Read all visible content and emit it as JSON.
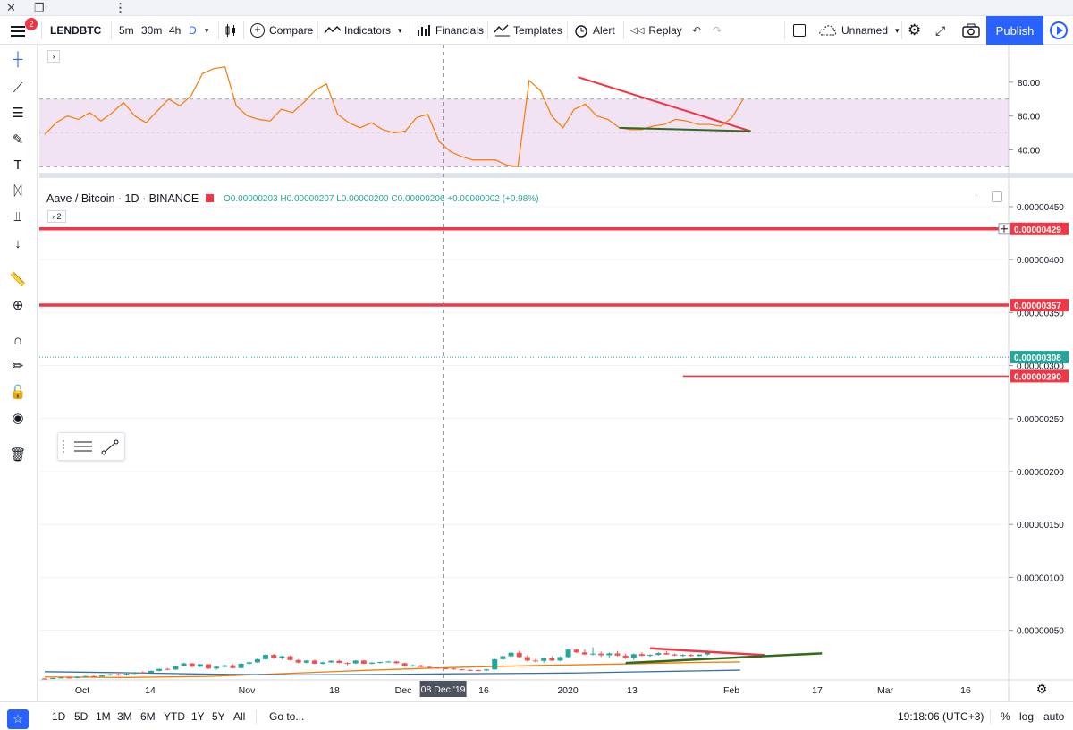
{
  "window": {
    "title_icons": [
      "close-icon",
      "restore-icon",
      "more-icon"
    ]
  },
  "toolbar": {
    "badge": "2",
    "symbol": "LENDBTC",
    "intervals": [
      "5m",
      "30m",
      "4h",
      "D"
    ],
    "compare": "Compare",
    "indicators": "Indicators",
    "financials": "Financials",
    "templates": "Templates",
    "alert": "Alert",
    "replay": "Replay",
    "layout_name": "Unnamed",
    "publish": "Publish"
  },
  "legend": {
    "title": "Aave / Bitcoin · 1D · BINANCE",
    "ohlc": "O0.00000203 H0.00000207 L0.00000200 C0.00000206 +0.00000002 (+0.98%)",
    "collapsed_count": "2"
  },
  "crosshair": {
    "date_label": "08 Dec '19"
  },
  "bottombar": {
    "ranges": [
      "1D",
      "5D",
      "1M",
      "3M",
      "6M",
      "YTD",
      "1Y",
      "5Y",
      "All"
    ],
    "goto": "Go to...",
    "clock": "19:18:06 (UTC+3)",
    "percent": "%",
    "log": "log",
    "auto": "auto"
  },
  "chart_data": [
    {
      "type": "line",
      "name": "RSI panel",
      "y_ticks": [
        "80.00",
        "60.00",
        "40.00"
      ],
      "ylim": [
        27,
        100
      ],
      "band": [
        30,
        70
      ],
      "colors": {
        "rsi": "#f57c00",
        "band": "#e1bee7"
      },
      "x": [
        0,
        3,
        6,
        9,
        12,
        15,
        18,
        21,
        24,
        27,
        30,
        33,
        36,
        39,
        42,
        45,
        48,
        51,
        54,
        57,
        60,
        63,
        66,
        69,
        72,
        75,
        78,
        81,
        84,
        87,
        90,
        93,
        96,
        99,
        102,
        105,
        108,
        111,
        114,
        117,
        120,
        123,
        126,
        129,
        132,
        135,
        138,
        141,
        144,
        147,
        150,
        153,
        156,
        159,
        162,
        165,
        168,
        171,
        174,
        177,
        180,
        183,
        186
      ],
      "values": [
        49,
        56,
        60,
        58,
        62,
        57,
        62,
        68,
        60,
        56,
        63,
        70,
        66,
        72,
        85,
        88,
        89,
        66,
        60,
        58,
        57,
        64,
        62,
        68,
        75,
        79,
        61,
        56,
        53,
        56,
        52,
        50,
        51,
        59,
        61,
        45,
        39,
        36,
        34,
        34,
        34,
        31,
        30,
        81,
        75,
        60,
        53,
        64,
        67,
        60,
        58,
        53,
        52,
        52,
        54,
        55,
        58,
        57,
        55,
        55,
        54,
        59,
        70
      ],
      "trendlines": [
        {
          "color": "#f23645",
          "from": [
            142,
            83
          ],
          "to": [
            188,
            51
          ]
        },
        {
          "color": "#33691e",
          "from": [
            153,
            53
          ],
          "to": [
            188,
            51
          ]
        }
      ]
    },
    {
      "type": "candlestick",
      "name": "Aave / Bitcoin · 1D · BINANCE",
      "y_ticks": [
        "0.00000450",
        "0.00000400",
        "0.00000350",
        "0.00000300",
        "0.00000250",
        "0.00000200",
        "0.00000150",
        "0.00000100",
        "0.00000050"
      ],
      "ylim": [
        1e-07,
        4.55e-06
      ],
      "x_ticks": [
        "Oct",
        "14",
        "Nov",
        "18",
        "Dec",
        "16",
        "2020",
        "13",
        "Feb",
        "17",
        "Mar",
        "16"
      ],
      "price_labels": [
        "0.00000429",
        "0.00000357",
        "0.00000308",
        "0.00000290"
      ],
      "colors": {
        "up": "#26a69a",
        "down": "#ef5350",
        "ma_short": "#f57c00",
        "ma_long": "#3b6ea5",
        "level": "#f23645",
        "support": "#33691e"
      },
      "ohlc": [
        [
          4.5e-08,
          4.8e-08,
          3.8e-08,
          4.2e-08
        ],
        [
          4.2e-08,
          5.2e-08,
          4e-08,
          5e-08
        ],
        [
          5e-08,
          6.2e-08,
          4.6e-08,
          5.5e-08
        ],
        [
          5.5e-08,
          6e-08,
          4.4e-08,
          4.9e-08
        ],
        [
          4.9e-08,
          6.6e-08,
          4.7e-08,
          6e-08
        ],
        [
          6e-08,
          7.2e-08,
          5.5e-08,
          6.8e-08
        ],
        [
          6.8e-08,
          7.8e-08,
          6e-08,
          6.4e-08
        ],
        [
          6.4e-08,
          8.2e-08,
          6e-08,
          7.7e-08
        ],
        [
          7.7e-08,
          9e-08,
          7e-08,
          8.5e-08
        ],
        [
          8.5e-08,
          9.2e-08,
          7.2e-08,
          7.6e-08
        ],
        [
          7.6e-08,
          9.5e-08,
          7.2e-08,
          9e-08
        ],
        [
          9e-08,
          1.08e-07,
          8.6e-08,
          1.04e-07
        ],
        [
          1.04e-07,
          1.15e-07,
          9.6e-08,
          1e-07
        ],
        [
          1e-07,
          1.22e-07,
          9.8e-08,
          1.18e-07
        ],
        [
          1.18e-07,
          1.4e-07,
          1.12e-07,
          1.36e-07
        ],
        [
          1.36e-07,
          1.48e-07,
          1.26e-07,
          1.3e-07
        ],
        [
          1.3e-07,
          1.7e-07,
          1.28e-07,
          1.65e-07
        ],
        [
          1.65e-07,
          1.95e-07,
          1.6e-07,
          1.88e-07
        ],
        [
          1.88e-07,
          1.92e-07,
          1.5e-07,
          1.58e-07
        ],
        [
          1.58e-07,
          1.85e-07,
          1.5e-07,
          1.8e-07
        ],
        [
          1.8e-07,
          1.82e-07,
          1.35e-07,
          1.4e-07
        ],
        [
          1.4e-07,
          1.62e-07,
          1.28e-07,
          1.56e-07
        ],
        [
          1.56e-07,
          1.75e-07,
          1.5e-07,
          1.7e-07
        ],
        [
          1.7e-07,
          1.78e-07,
          1.4e-07,
          1.45e-07
        ],
        [
          1.45e-07,
          1.9e-07,
          1.42e-07,
          1.85e-07
        ],
        [
          1.85e-07,
          2.05e-07,
          1.7e-07,
          1.98e-07
        ],
        [
          1.98e-07,
          2.35e-07,
          1.9e-07,
          2.28e-07
        ],
        [
          2.28e-07,
          2.75e-07,
          2.22e-07,
          2.68e-07
        ],
        [
          2.68e-07,
          2.78e-07,
          2.3e-07,
          2.38e-07
        ],
        [
          2.38e-07,
          2.62e-07,
          2.28e-07,
          2.55e-07
        ],
        [
          2.55e-07,
          2.62e-07,
          2.15e-07,
          2.2e-07
        ],
        [
          2.2e-07,
          2.28e-07,
          1.9e-07,
          1.95e-07
        ],
        [
          1.95e-07,
          2.2e-07,
          1.86e-07,
          2.15e-07
        ],
        [
          2.15e-07,
          2.25e-07,
          1.8e-07,
          1.85e-07
        ],
        [
          1.85e-07,
          2.05e-07,
          1.78e-07,
          1.98e-07
        ],
        [
          1.98e-07,
          2.18e-07,
          1.92e-07,
          2.12e-07
        ],
        [
          2.12e-07,
          2.22e-07,
          1.9e-07,
          1.92e-07
        ],
        [
          1.92e-07,
          2e-07,
          1.7e-07,
          1.88e-07
        ],
        [
          1.88e-07,
          2.18e-07,
          1.82e-07,
          2.15e-07
        ],
        [
          2.15e-07,
          2.2e-07,
          1.8e-07,
          1.85e-07
        ],
        [
          1.85e-07,
          2e-07,
          1.78e-07,
          1.95e-07
        ],
        [
          1.95e-07,
          2.05e-07,
          1.85e-07,
          2.02e-07
        ],
        [
          2.02e-07,
          2.12e-07,
          1.96e-07,
          2.06e-07
        ],
        [
          2.06e-07,
          2.12e-07,
          1.86e-07,
          1.9e-07
        ],
        [
          1.9e-07,
          1.95e-07,
          1.6e-07,
          1.65e-07
        ],
        [
          1.65e-07,
          1.78e-07,
          1.55e-07,
          1.7e-07
        ],
        [
          1.7e-07,
          1.75e-07,
          1.5e-07,
          1.55e-07
        ],
        [
          1.55e-07,
          1.62e-07,
          1.42e-07,
          1.48e-07
        ],
        [
          1.48e-07,
          1.52e-07,
          1.38e-07,
          1.42e-07
        ],
        [
          1.42e-07,
          1.48e-07,
          1.35e-07,
          1.4e-07
        ],
        [
          1.4e-07,
          1.45e-07,
          1.28e-07,
          1.32e-07
        ],
        [
          1.32e-07,
          1.38e-07,
          1.24e-07,
          1.27e-07
        ],
        [
          1.27e-07,
          1.33e-07,
          1.2e-07,
          1.24e-07
        ],
        [
          1.24e-07,
          1.3e-07,
          1.18e-07,
          1.22e-07
        ],
        [
          1.22e-07,
          1.36e-07,
          1.15e-07,
          1.32e-07
        ],
        [
          1.32e-07,
          2.32e-07,
          1.28e-07,
          2.28e-07
        ],
        [
          2.28e-07,
          2.62e-07,
          2.2e-07,
          2.55e-07
        ],
        [
          2.55e-07,
          3.02e-07,
          2.45e-07,
          2.88e-07
        ],
        [
          2.88e-07,
          3.08e-07,
          2.4e-07,
          2.48e-07
        ],
        [
          2.48e-07,
          2.65e-07,
          2.05e-07,
          2.15e-07
        ],
        [
          2.15e-07,
          2.3e-07,
          1.95e-07,
          2.12e-07
        ],
        [
          2.12e-07,
          2.4e-07,
          1.95e-07,
          2.35e-07
        ],
        [
          2.35e-07,
          2.56e-07,
          2.1e-07,
          2.15e-07
        ],
        [
          2.15e-07,
          2.55e-07,
          2.08e-07,
          2.48e-07
        ],
        [
          2.48e-07,
          3.22e-07,
          2.4e-07,
          3.18e-07
        ],
        [
          3.18e-07,
          3.25e-07,
          2.85e-07,
          2.92e-07
        ],
        [
          2.92e-07,
          3.2e-07,
          2.65e-07,
          2.72e-07
        ],
        [
          2.72e-07,
          3.4e-07,
          2.62e-07,
          2.8e-07
        ],
        [
          2.8e-07,
          3e-07,
          2.5e-07,
          2.65e-07
        ],
        [
          2.65e-07,
          2.9e-07,
          2.45e-07,
          2.82e-07
        ],
        [
          2.82e-07,
          3.05e-07,
          2.55e-07,
          2.62e-07
        ],
        [
          2.62e-07,
          2.8e-07,
          2.3e-07,
          2.38e-07
        ],
        [
          2.38e-07,
          2.82e-07,
          2.2e-07,
          2.75e-07
        ],
        [
          2.75e-07,
          2.92e-07,
          2.55e-07,
          2.6e-07
        ],
        [
          2.6e-07,
          2.75e-07,
          2.5e-07,
          2.68e-07
        ],
        [
          2.68e-07,
          2.95e-07,
          2.62e-07,
          2.85e-07
        ],
        [
          2.85e-07,
          3.05e-07,
          2.68e-07,
          2.72e-07
        ],
        [
          2.72e-07,
          2.82e-07,
          2.58e-07,
          2.62e-07
        ],
        [
          2.62e-07,
          2.75e-07,
          2.5e-07,
          2.68e-07
        ],
        [
          2.68e-07,
          2.76e-07,
          2.52e-07,
          2.58e-07
        ],
        [
          2.58e-07,
          2.74e-07,
          2.52e-07,
          2.72e-07
        ],
        [
          2.72e-07,
          3.1e-07,
          2.62e-07,
          3.06e-07
        ]
      ],
      "moving_averages": [
        {
          "name": "ma_short",
          "color": "#f57c00",
          "points": [
            [
              0,
              6e-08
            ],
            [
              10,
              5.5e-08
            ],
            [
              20,
              6.5e-08
            ],
            [
              30,
              9.5e-08
            ],
            [
              40,
              1.25e-07
            ],
            [
              50,
              1.5e-07
            ],
            [
              60,
              1.68e-07
            ],
            [
              70,
              1.82e-07
            ],
            [
              80,
              1.98e-07
            ],
            [
              85,
              2.02e-07
            ]
          ]
        },
        {
          "name": "ma_long",
          "color": "#3b6ea5",
          "points": [
            [
              0,
              1.1e-07
            ],
            [
              10,
              1e-07
            ],
            [
              20,
              8.7e-08
            ],
            [
              30,
              8e-08
            ],
            [
              40,
              8.3e-08
            ],
            [
              50,
              9e-08
            ],
            [
              60,
              9.5e-08
            ],
            [
              65,
              9.8e-08
            ],
            [
              70,
              1.05e-07
            ],
            [
              80,
              1.18e-07
            ],
            [
              85,
              1.25e-07
            ]
          ]
        }
      ],
      "horizontal_levels": [
        {
          "value": 4.29e-06,
          "color": "#f23645",
          "label": "0.00000429"
        },
        {
          "value": 3.57e-06,
          "color": "#f23645",
          "label": "0.00000357"
        }
      ],
      "short_levels": [
        {
          "value": 2.9e-06,
          "color": "#f23645",
          "from": 78,
          "to": 123,
          "label": "0.00000290"
        }
      ],
      "last_price": {
        "value": 3.08e-06,
        "label": "0.00000308"
      },
      "trendlines": [
        {
          "color": "#f23645",
          "from": [
            74,
            3.3e-07
          ],
          "to": [
            88,
            2.66e-07
          ]
        },
        {
          "color": "#33691e",
          "from": [
            71,
            1.92e-07
          ],
          "to": [
            95,
            2.83e-07
          ]
        }
      ]
    }
  ]
}
